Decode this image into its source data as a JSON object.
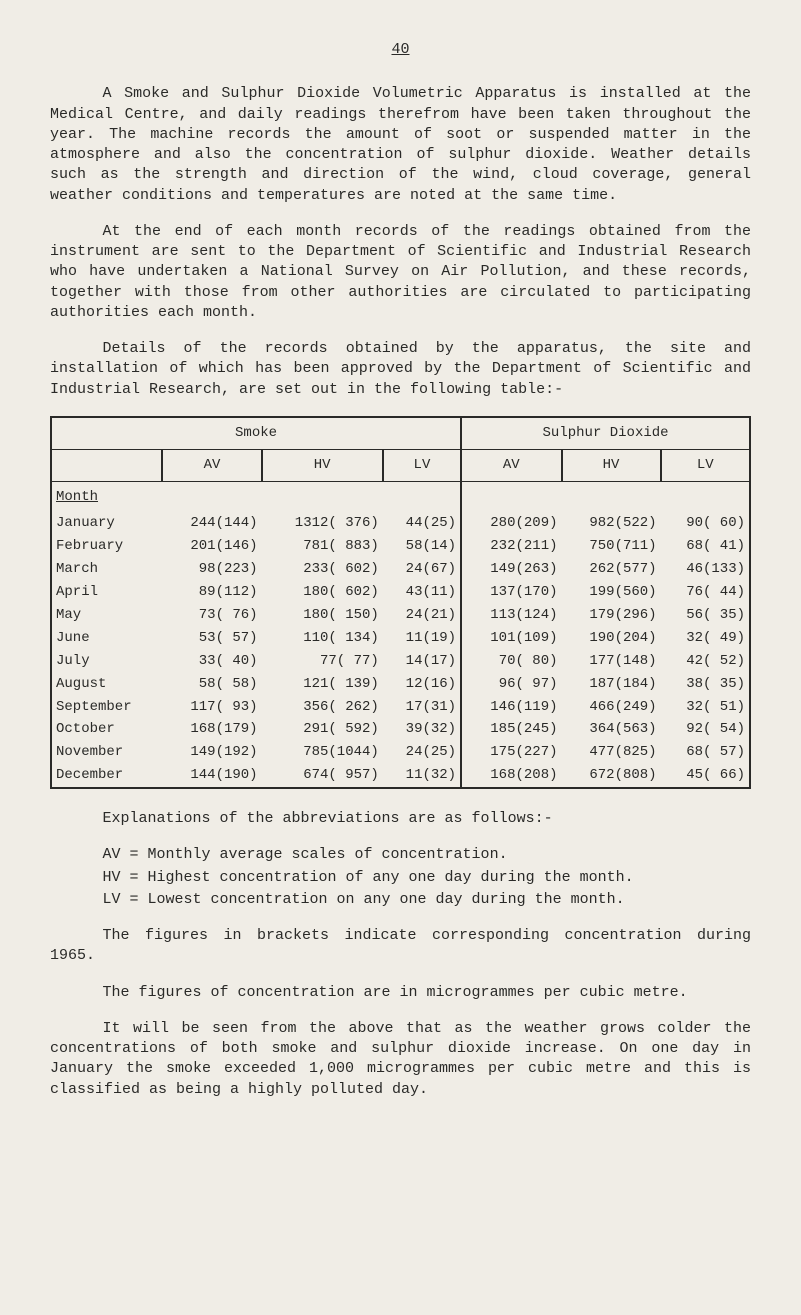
{
  "page_number": "40",
  "paragraphs": {
    "p1": "A Smoke and Sulphur Dioxide Volumetric Apparatus is installed at the Medical Centre, and daily readings therefrom have been taken throughout the year. The machine records the amount of soot or suspended matter in the atmosphere and also the concentration of sulphur dioxide. Weather details such as the strength and direction of the wind, cloud coverage, general weather conditions and temperatures are noted at the same time.",
    "p2": "At the end of each month records of the readings obtained from the instrument are sent to the Department of Scientific and Industrial Research who have undertaken a National Survey on Air Pollution, and these records, together with those from other authorities are circulated to participating authorities each month.",
    "p3": "Details of the records obtained by the apparatus, the site and installation of which has been approved by the Department of Scientific and Industrial Research, are set out in the following table:-",
    "expl": "Explanations of the abbreviations are as follows:-",
    "brackets": "The figures in brackets indicate corresponding concentration during 1965.",
    "units": "The figures of concentration are in microgrammes per cubic metre.",
    "closing": "It will be seen from the above that as the weather grows colder the concentrations of both smoke and sulphur dioxide increase. On one day in January the smoke exceeded 1,000 microgrammes per cubic metre and this is classified as being a highly polluted day."
  },
  "defs": {
    "av": "AV = Monthly average scales of concentration.",
    "hv": "HV = Highest concentration of any one day during the month.",
    "lv": "LV = Lowest concentration on any one day during the month."
  },
  "table": {
    "group1": "Smoke",
    "group2": "Sulphur Dioxide",
    "cols": [
      "AV",
      "HV",
      "LV",
      "AV",
      "HV",
      "LV"
    ],
    "month_label": "Month",
    "rows": [
      {
        "m": "January",
        "s_av": "244(144)",
        "s_hv": "1312( 376)",
        "s_lv": "44(25)",
        "d_av": "280(209)",
        "d_hv": "982(522)",
        "d_lv": "90( 60)"
      },
      {
        "m": "February",
        "s_av": "201(146)",
        "s_hv": "781( 883)",
        "s_lv": "58(14)",
        "d_av": "232(211)",
        "d_hv": "750(711)",
        "d_lv": "68( 41)"
      },
      {
        "m": "March",
        "s_av": "98(223)",
        "s_hv": "233( 602)",
        "s_lv": "24(67)",
        "d_av": "149(263)",
        "d_hv": "262(577)",
        "d_lv": "46(133)"
      },
      {
        "m": "April",
        "s_av": "89(112)",
        "s_hv": "180( 602)",
        "s_lv": "43(11)",
        "d_av": "137(170)",
        "d_hv": "199(560)",
        "d_lv": "76( 44)"
      },
      {
        "m": "May",
        "s_av": "73( 76)",
        "s_hv": "180( 150)",
        "s_lv": "24(21)",
        "d_av": "113(124)",
        "d_hv": "179(296)",
        "d_lv": "56( 35)"
      },
      {
        "m": "June",
        "s_av": "53( 57)",
        "s_hv": "110( 134)",
        "s_lv": "11(19)",
        "d_av": "101(109)",
        "d_hv": "190(204)",
        "d_lv": "32( 49)"
      },
      {
        "m": "July",
        "s_av": "33( 40)",
        "s_hv": "77(  77)",
        "s_lv": "14(17)",
        "d_av": "70( 80)",
        "d_hv": "177(148)",
        "d_lv": "42( 52)"
      },
      {
        "m": "August",
        "s_av": "58( 58)",
        "s_hv": "121( 139)",
        "s_lv": "12(16)",
        "d_av": "96( 97)",
        "d_hv": "187(184)",
        "d_lv": "38( 35)"
      },
      {
        "m": "September",
        "s_av": "117( 93)",
        "s_hv": "356( 262)",
        "s_lv": "17(31)",
        "d_av": "146(119)",
        "d_hv": "466(249)",
        "d_lv": "32( 51)"
      },
      {
        "m": "October",
        "s_av": "168(179)",
        "s_hv": "291( 592)",
        "s_lv": "39(32)",
        "d_av": "185(245)",
        "d_hv": "364(563)",
        "d_lv": "92( 54)"
      },
      {
        "m": "November",
        "s_av": "149(192)",
        "s_hv": "785(1044)",
        "s_lv": "24(25)",
        "d_av": "175(227)",
        "d_hv": "477(825)",
        "d_lv": "68( 57)"
      },
      {
        "m": "December",
        "s_av": "144(190)",
        "s_hv": "674( 957)",
        "s_lv": "11(32)",
        "d_av": "168(208)",
        "d_hv": "672(808)",
        "d_lv": "45( 66)"
      }
    ]
  }
}
